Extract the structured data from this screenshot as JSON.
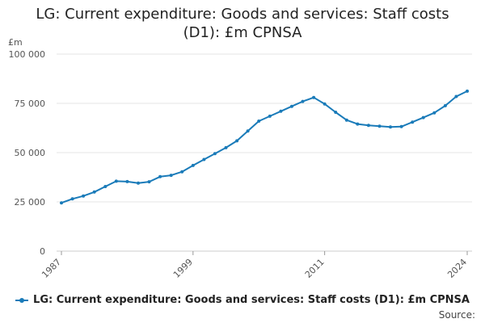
{
  "chart_data": {
    "type": "line",
    "title_line1": "LG: Current expenditure: Goods and services: Staff costs",
    "title_line2": "(D1): £m CPNSA",
    "ylabel": "£m",
    "ylim": [
      0,
      100000
    ],
    "yticks": [
      0,
      25000,
      50000,
      75000,
      100000
    ],
    "ytick_labels": [
      "0",
      "25 000",
      "50 000",
      "75 000",
      "100 000"
    ],
    "xlim": [
      1987,
      2024
    ],
    "xticks": [
      1987,
      1999,
      2011,
      2024
    ],
    "xtick_labels": [
      "1987",
      "1999",
      "2011",
      "2024"
    ],
    "grid": true,
    "legend_position": "bottom",
    "color": "#1a7bb9",
    "series": [
      {
        "name": "LG: Current expenditure: Goods and services: Staff costs (D1): £m CPNSA",
        "x": [
          1987,
          1988,
          1989,
          1990,
          1991,
          1992,
          1993,
          1994,
          1995,
          1996,
          1997,
          1998,
          1999,
          2000,
          2001,
          2002,
          2003,
          2004,
          2005,
          2006,
          2007,
          2008,
          2009,
          2010,
          2011,
          2012,
          2013,
          2014,
          2015,
          2016,
          2017,
          2018,
          2019,
          2020,
          2021,
          2022,
          2023,
          2024
        ],
        "values": [
          24500,
          26500,
          28000,
          30000,
          32800,
          35500,
          35300,
          34500,
          35200,
          37800,
          38500,
          40300,
          43500,
          46500,
          49500,
          52500,
          56000,
          61000,
          66000,
          68500,
          71000,
          73500,
          76000,
          78000,
          74700,
          70500,
          66500,
          64500,
          63800,
          63400,
          63000,
          63200,
          65500,
          67800,
          70200,
          73800,
          78500,
          81200
        ]
      }
    ]
  },
  "source_label": "Source:"
}
